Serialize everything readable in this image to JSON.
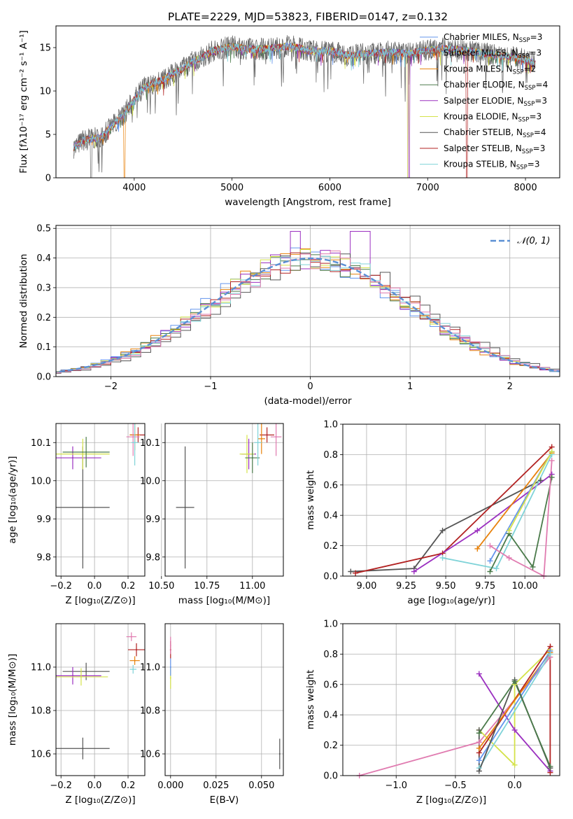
{
  "figure_title": "PLATE=2229, MJD=53823, FIBERID=0147, z=0.132",
  "colors": {
    "series": [
      "#6495ed",
      "#6a6a6a",
      "#e8820c",
      "#4a7a4a",
      "#9b30c0",
      "#d4e24a",
      "#555555",
      "#b22222",
      "#7fd3d8",
      "#e07bb0"
    ],
    "grid": "#b0b0b0",
    "normal_curve": "#5b8fd4"
  },
  "chart_data": [
    {
      "id": "spectrum",
      "type": "line",
      "title": "PLATE=2229, MJD=53823, FIBERID=0147, z=0.132",
      "xlabel": "wavelength [Angstrom, rest frame]",
      "ylabel": "Flux [fλ10⁻¹⁷ erg cm⁻² s⁻¹ A⁻¹]",
      "xlim": [
        3200,
        8350
      ],
      "ylim": [
        0,
        17.5
      ],
      "xticks": [
        "4000",
        "5000",
        "6000",
        "7000",
        "8000"
      ],
      "yticks": [
        "0",
        "5",
        "10",
        "15"
      ],
      "grid": false,
      "legend_position": "right",
      "continuum": [
        [
          3380,
          3.5
        ],
        [
          3500,
          4.4
        ],
        [
          3650,
          4.6
        ],
        [
          3800,
          6.2
        ],
        [
          3900,
          7.4
        ],
        [
          4000,
          9.0
        ],
        [
          4100,
          10.4
        ],
        [
          4200,
          10.9
        ],
        [
          4300,
          11.3
        ],
        [
          4400,
          12.0
        ],
        [
          4500,
          12.6
        ],
        [
          4600,
          13.4
        ],
        [
          4700,
          13.9
        ],
        [
          4800,
          14.6
        ],
        [
          4900,
          14.9
        ],
        [
          5000,
          15.1
        ],
        [
          5200,
          14.8
        ],
        [
          5400,
          14.9
        ],
        [
          5600,
          15.2
        ],
        [
          5800,
          14.6
        ],
        [
          6000,
          14.6
        ],
        [
          6200,
          14.1
        ],
        [
          6400,
          14.3
        ],
        [
          6600,
          14.5
        ],
        [
          6800,
          14.3
        ],
        [
          7000,
          14.7
        ],
        [
          7200,
          14.9
        ],
        [
          7400,
          14.6
        ],
        [
          7600,
          14.3
        ],
        [
          7800,
          14.0
        ],
        [
          8000,
          13.6
        ],
        [
          8100,
          13.1
        ]
      ],
      "drops": [
        {
          "series": "Salpeter MILES",
          "x": 3560
        },
        {
          "series": "Kroupa MILES",
          "x": 3900
        },
        {
          "series": "Kroupa ELODIE",
          "x": 6800
        },
        {
          "series": "Salpeter ELODIE",
          "x": 6810
        },
        {
          "series": "Salpeter STELIB",
          "x": 7400
        }
      ],
      "legend": [
        {
          "label": "Chabrier MILES, N",
          "sub": "SSP",
          "suffix": "=3"
        },
        {
          "label": "Salpeter MILES, N",
          "sub": "SSP",
          "suffix": "=3"
        },
        {
          "label": "Kroupa MILES, N",
          "sub": "SSP",
          "suffix": "=2"
        },
        {
          "label": "Chabrier ELODIE, N",
          "sub": "SSP",
          "suffix": "=4"
        },
        {
          "label": "Salpeter ELODIE, N",
          "sub": "SSP",
          "suffix": "=3"
        },
        {
          "label": "Kroupa ELODIE, N",
          "sub": "SSP",
          "suffix": "=3"
        },
        {
          "label": "Chabrier STELIB, N",
          "sub": "SSP",
          "suffix": "=4"
        },
        {
          "label": "Salpeter STELIB, N",
          "sub": "SSP",
          "suffix": "=3"
        },
        {
          "label": "Kroupa STELIB, N",
          "sub": "SSP",
          "suffix": "=3"
        }
      ],
      "legend_colors": [
        0,
        1,
        2,
        3,
        4,
        5,
        6,
        7,
        8
      ]
    },
    {
      "id": "residuals",
      "type": "line",
      "xlabel": "(data-model)/error",
      "ylabel": "Normed distribution",
      "xlim": [
        -2.55,
        2.5
      ],
      "ylim": [
        0,
        0.51
      ],
      "xticks": [
        "−2",
        "−1",
        "0",
        "1",
        "2"
      ],
      "yticks": [
        "0.0",
        "0.1",
        "0.2",
        "0.3",
        "0.4",
        "0.5"
      ],
      "grid": true,
      "legend": "𝒩(0, 1)",
      "normal": {
        "mean": 0,
        "sigma": 1
      }
    },
    {
      "id": "age_vs_Z",
      "type": "scatter",
      "xlabel": "Z [log₁₀(Z/Z⊙)]",
      "ylabel": "age  [log₁₀(age/yr)]",
      "xlim": [
        -0.23,
        0.3
      ],
      "ylim": [
        9.75,
        10.15
      ],
      "xticks": [
        "−0.2",
        "0.0",
        "0.2"
      ],
      "yticks": [
        "9.8",
        "9.9",
        "10.0",
        "10.1"
      ],
      "grid": true,
      "points": [
        {
          "c": 6,
          "x": -0.07,
          "y": 9.93,
          "xe": 0.16,
          "ye": 0.16
        },
        {
          "c": 4,
          "x": -0.13,
          "y": 10.06,
          "xe": 0.17,
          "ye": 0.03
        },
        {
          "c": 5,
          "x": -0.07,
          "y": 10.07,
          "xe": 0.16,
          "ye": 0.04
        },
        {
          "c": 3,
          "x": -0.05,
          "y": 10.075,
          "xe": 0.14,
          "ye": 0.04
        },
        {
          "c": 7,
          "x": 0.26,
          "y": 10.12,
          "xe": 0.05,
          "ye": 0.02
        },
        {
          "c": 2,
          "x": 0.24,
          "y": 10.12,
          "xe": 0.03,
          "ye": 0.04
        },
        {
          "c": 9,
          "x": 0.23,
          "y": 10.115,
          "xe": 0.04,
          "ye": 0.05
        },
        {
          "c": 8,
          "x": 0.24,
          "y": 10.1,
          "xe": 0.02,
          "ye": 0.06
        }
      ]
    },
    {
      "id": "age_vs_mass",
      "type": "scatter",
      "xlabel": "mass [log₁₀(M/M⊙)]",
      "xlim": [
        10.52,
        11.17
      ],
      "ylim": [
        9.75,
        10.15
      ],
      "xticks": [
        "10.50",
        "10.75",
        "11.00"
      ],
      "yticks": [
        "9.8",
        "9.9",
        "10.0",
        "10.1"
      ],
      "grid": true,
      "points": [
        {
          "c": 6,
          "x": 10.63,
          "y": 9.93,
          "xe": 0.05,
          "ye": 0.16
        },
        {
          "c": 4,
          "x": 10.98,
          "y": 10.07,
          "xe": 0.04,
          "ye": 0.04
        },
        {
          "c": 5,
          "x": 10.97,
          "y": 10.07,
          "xe": 0.04,
          "ye": 0.05
        },
        {
          "c": 3,
          "x": 11.0,
          "y": 10.06,
          "xe": 0.04,
          "ye": 0.04
        },
        {
          "c": 7,
          "x": 11.08,
          "y": 10.12,
          "xe": 0.04,
          "ye": 0.02
        },
        {
          "c": 2,
          "x": 11.05,
          "y": 10.11,
          "xe": 0.02,
          "ye": 0.04
        },
        {
          "c": 9,
          "x": 11.13,
          "y": 10.115,
          "xe": 0.03,
          "ye": 0.05
        },
        {
          "c": 8,
          "x": 11.03,
          "y": 10.1,
          "xe": 0.02,
          "ye": 0.06
        }
      ]
    },
    {
      "id": "weight_vs_age",
      "type": "line",
      "xlabel": "age  [log₁₀(age/yr)]",
      "ylabel": "mass weight",
      "xlim": [
        8.85,
        10.22
      ],
      "ylim": [
        0,
        1.0
      ],
      "xticks": [
        "9.00",
        "9.25",
        "9.50",
        "9.75",
        "10.00"
      ],
      "yticks": [
        "0.0",
        "0.2",
        "0.4",
        "0.6",
        "0.8",
        "1.0"
      ],
      "grid": true,
      "series": [
        {
          "c": 6,
          "points": [
            [
              8.9,
              0.03
            ],
            [
              9.3,
              0.05
            ],
            [
              9.48,
              0.3
            ],
            [
              10.1,
              0.63
            ]
          ]
        },
        {
          "c": 7,
          "points": [
            [
              8.93,
              0.02
            ],
            [
              9.48,
              0.15
            ],
            [
              10.17,
              0.85
            ]
          ]
        },
        {
          "c": 4,
          "points": [
            [
              9.3,
              0.03
            ],
            [
              9.7,
              0.3
            ],
            [
              10.17,
              0.67
            ]
          ]
        },
        {
          "c": 2,
          "points": [
            [
              9.7,
              0.18
            ],
            [
              10.17,
              0.81
            ]
          ]
        },
        {
          "c": 8,
          "points": [
            [
              9.48,
              0.12
            ],
            [
              9.82,
              0.05
            ],
            [
              10.17,
              0.8
            ]
          ]
        },
        {
          "c": 0,
          "points": [
            [
              9.78,
              0.1
            ],
            [
              10.17,
              0.82
            ]
          ]
        },
        {
          "c": 3,
          "points": [
            [
              9.78,
              0.03
            ],
            [
              9.9,
              0.28
            ],
            [
              10.05,
              0.06
            ],
            [
              10.17,
              0.65
            ]
          ]
        },
        {
          "c": 5,
          "points": [
            [
              9.9,
              0.3
            ],
            [
              10.17,
              0.82
            ]
          ]
        },
        {
          "c": 9,
          "points": [
            [
              9.78,
              0.2
            ],
            [
              9.9,
              0.12
            ],
            [
              10.12,
              0.0
            ],
            [
              10.17,
              0.76
            ]
          ]
        }
      ]
    },
    {
      "id": "mass_vs_Z",
      "type": "scatter",
      "xlabel": "Z [log₁₀(Z/Z⊙)]",
      "ylabel": "mass [log₁₀(M/M⊙)]",
      "xlim": [
        -0.23,
        0.3
      ],
      "ylim": [
        10.5,
        11.2
      ],
      "xticks": [
        "−0.2",
        "0.0",
        "0.2"
      ],
      "yticks": [
        "10.6",
        "10.8",
        "11.0"
      ],
      "grid": true,
      "points": [
        {
          "c": 6,
          "x": -0.07,
          "y": 10.625,
          "xe": 0.16,
          "ye": 0.05
        },
        {
          "c": 6,
          "x": -0.05,
          "y": 10.98,
          "xe": 0.14,
          "ye": 0.04
        },
        {
          "c": 4,
          "x": -0.13,
          "y": 10.96,
          "xe": 0.17,
          "ye": 0.04
        },
        {
          "c": 5,
          "x": -0.08,
          "y": 10.955,
          "xe": 0.16,
          "ye": 0.04
        },
        {
          "c": 7,
          "x": 0.25,
          "y": 11.08,
          "xe": 0.05,
          "ye": 0.03
        },
        {
          "c": 2,
          "x": 0.24,
          "y": 11.03,
          "xe": 0.03,
          "ye": 0.02
        },
        {
          "c": 9,
          "x": 0.22,
          "y": 11.14,
          "xe": 0.03,
          "ye": 0.02
        },
        {
          "c": 8,
          "x": 0.23,
          "y": 10.99,
          "xe": 0.02,
          "ye": 0.02
        }
      ]
    },
    {
      "id": "mass_vs_EBV",
      "type": "scatter",
      "xlabel": "E(B-V)",
      "xlim": [
        -0.003,
        0.062
      ],
      "ylim": [
        10.5,
        11.2
      ],
      "xticks": [
        "0.000",
        "0.025",
        "0.050"
      ],
      "yticks": [
        "10.6",
        "10.8",
        "11.0"
      ],
      "grid": true,
      "points": [
        {
          "c": 6,
          "x": 0.06,
          "y": 10.6,
          "xe": 0,
          "ye": 0.07
        },
        {
          "c": 7,
          "x": 0.0,
          "y": 11.08,
          "xe": 0,
          "ye": 0.04
        },
        {
          "c": 9,
          "x": 0.0,
          "y": 11.1,
          "xe": 0,
          "ye": 0.04
        },
        {
          "c": 5,
          "x": 0.0,
          "y": 10.95,
          "xe": 0,
          "ye": 0.05
        },
        {
          "c": 0,
          "x": 0.0,
          "y": 11.0,
          "xe": 0,
          "ye": 0.04
        }
      ]
    },
    {
      "id": "weight_vs_Z",
      "type": "line",
      "xlabel": "Z [log₁₀(Z/Z⊙)]",
      "ylabel": "mass weight",
      "xlim": [
        -1.45,
        0.38
      ],
      "ylim": [
        0,
        1.0
      ],
      "xticks": [
        "−1.0",
        "−0.5",
        "0.0"
      ],
      "yticks": [
        "0.0",
        "0.2",
        "0.4",
        "0.6",
        "0.8",
        "1.0"
      ],
      "grid": true,
      "series": [
        {
          "c": 9,
          "points": [
            [
              -1.31,
              0.0
            ],
            [
              -0.3,
              0.22
            ],
            [
              0.3,
              0.78
            ]
          ]
        },
        {
          "c": 4,
          "points": [
            [
              -0.3,
              0.67
            ],
            [
              0.0,
              0.3
            ],
            [
              0.3,
              0.03
            ]
          ]
        },
        {
          "c": 5,
          "points": [
            [
              -0.3,
              0.3
            ],
            [
              0.0,
              0.07
            ],
            [
              0.0,
              0.6
            ],
            [
              0.3,
              0.83
            ]
          ]
        },
        {
          "c": 7,
          "points": [
            [
              -0.3,
              0.15
            ],
            [
              0.3,
              0.85
            ],
            [
              0.3,
              0.02
            ]
          ]
        },
        {
          "c": 2,
          "points": [
            [
              -0.3,
              0.18
            ],
            [
              0.3,
              0.81
            ]
          ]
        },
        {
          "c": 0,
          "points": [
            [
              -0.3,
              0.1
            ],
            [
              0.3,
              0.82
            ]
          ]
        },
        {
          "c": 8,
          "points": [
            [
              -0.3,
              0.05
            ],
            [
              0.3,
              0.8
            ]
          ]
        },
        {
          "c": 6,
          "points": [
            [
              -0.3,
              0.3
            ],
            [
              -0.3,
              0.03
            ],
            [
              0.0,
              0.63
            ],
            [
              0.3,
              0.05
            ]
          ]
        },
        {
          "c": 3,
          "points": [
            [
              -0.3,
              0.28
            ],
            [
              0.0,
              0.62
            ],
            [
              0.3,
              0.06
            ]
          ]
        }
      ]
    }
  ]
}
